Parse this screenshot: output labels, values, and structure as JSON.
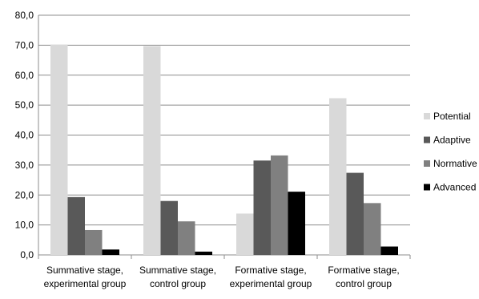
{
  "chart_data": {
    "type": "bar",
    "title": "",
    "xlabel": "",
    "ylabel": "",
    "ylim": [
      0,
      80
    ],
    "yticks": [
      "0,0",
      "10,0",
      "20,0",
      "30,0",
      "40,0",
      "50,0",
      "60,0",
      "70,0",
      "80,0"
    ],
    "grid": true,
    "legend_position": "right",
    "categories": [
      [
        "Summative stage,",
        "experimental group"
      ],
      [
        "Summative stage,",
        "control group"
      ],
      [
        "Formative stage,",
        "experimental group"
      ],
      [
        "Formative stage,",
        "control group"
      ]
    ],
    "series": [
      {
        "name": "Potential",
        "color": "#d9d9d9",
        "values": [
          70.2,
          69.7,
          13.8,
          52.3
        ]
      },
      {
        "name": "Adaptive",
        "color": "#595959",
        "values": [
          19.3,
          18.0,
          31.5,
          27.4
        ]
      },
      {
        "name": "Normative",
        "color": "#808080",
        "values": [
          8.3,
          11.2,
          33.2,
          17.3
        ]
      },
      {
        "name": "Advanced",
        "color": "#000000",
        "values": [
          1.8,
          1.1,
          21.1,
          2.8
        ]
      }
    ]
  }
}
